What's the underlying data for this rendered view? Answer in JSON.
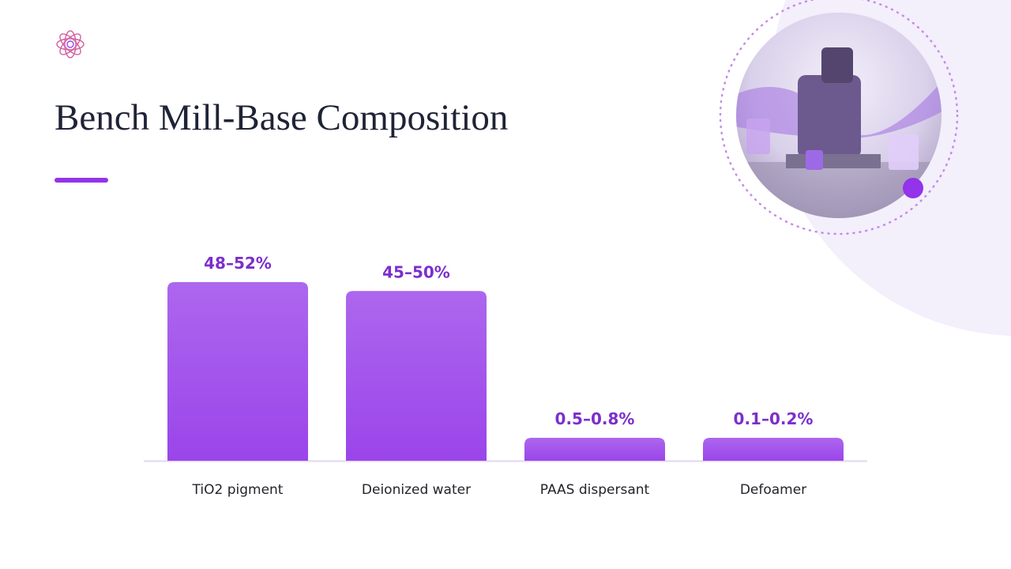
{
  "chart_data": {
    "type": "bar",
    "title": "Bench Mill-Base Composition",
    "categories": [
      "TiO2 pigment",
      "Deionized water",
      "PAAS dispersant",
      "Defoamer"
    ],
    "values": [
      50,
      47.5,
      0.65,
      0.15
    ],
    "value_labels": [
      "48–52%",
      "45–50%",
      "0.5–0.8%",
      "0.1–0.2%"
    ],
    "color": "#9b45ea"
  }
}
